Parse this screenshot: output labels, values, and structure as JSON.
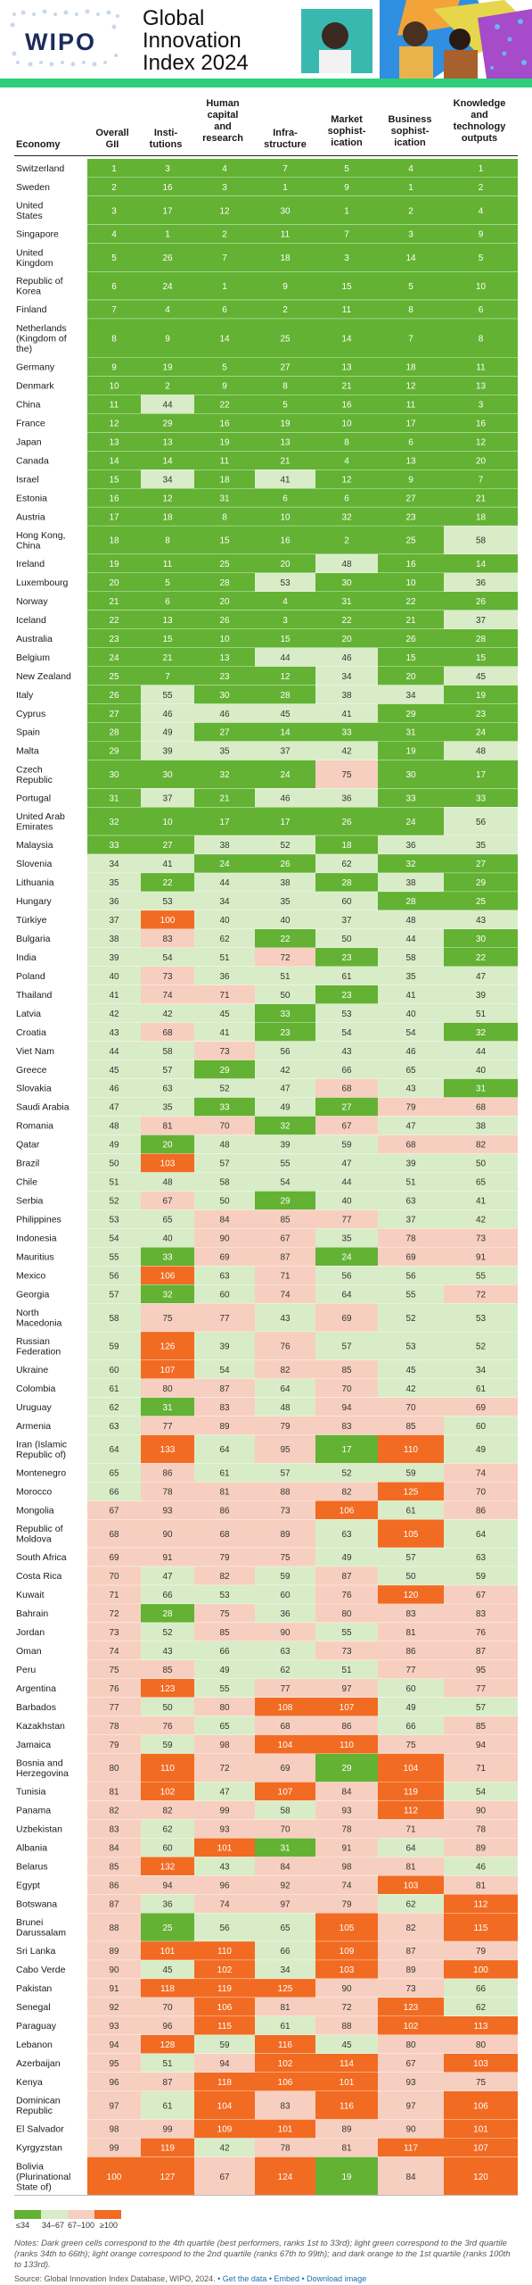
{
  "header": {
    "logo_text": "WIPO",
    "title": "Global\nInnovation\nIndex 2024",
    "colors": {
      "band": "#2ecf7a",
      "logo_text": "#1b2c5c"
    }
  },
  "table": {
    "columns": [
      "Economy",
      "Overall\nGII",
      "Insti-\ntutions",
      "Human\ncapital\nand\nresearch",
      "Infra-\nstructure",
      "Market\nsophist-\nication",
      "Business\nsophist-\nication",
      "Knowledge\nand\ntechnology\noutputs"
    ]
  },
  "chart_data": {
    "type": "table",
    "title": "",
    "columns": [
      "Economy",
      "Overall GII",
      "Institutions",
      "Human capital and research",
      "Infrastructure",
      "Market sophistication",
      "Business sophistication",
      "Knowledge and technology outputs"
    ],
    "color_scale": {
      "q1": "#63b233",
      "q2": "#d9ecc8",
      "q3": "#f7cfc0",
      "q4": "#f26b22"
    },
    "rows": [
      [
        "Switzerland",
        1,
        3,
        4,
        7,
        5,
        4,
        1
      ],
      [
        "Sweden",
        2,
        16,
        3,
        1,
        9,
        1,
        2
      ],
      [
        "United\nStates",
        3,
        17,
        12,
        30,
        1,
        2,
        4
      ],
      [
        "Singapore",
        4,
        1,
        2,
        11,
        7,
        3,
        9
      ],
      [
        "United\nKingdom",
        5,
        26,
        7,
        18,
        3,
        14,
        5
      ],
      [
        "Republic of\nKorea",
        6,
        24,
        1,
        9,
        15,
        5,
        10
      ],
      [
        "Finland",
        7,
        4,
        6,
        2,
        11,
        8,
        6
      ],
      [
        "Netherlands\n(Kingdom of\nthe)",
        8,
        9,
        14,
        25,
        14,
        7,
        8
      ],
      [
        "Germany",
        9,
        19,
        5,
        27,
        13,
        18,
        11
      ],
      [
        "Denmark",
        10,
        2,
        9,
        8,
        21,
        12,
        13
      ],
      [
        "China",
        11,
        44,
        22,
        5,
        16,
        11,
        3
      ],
      [
        "France",
        12,
        29,
        16,
        19,
        10,
        17,
        16
      ],
      [
        "Japan",
        13,
        13,
        19,
        13,
        8,
        6,
        12
      ],
      [
        "Canada",
        14,
        14,
        11,
        21,
        4,
        13,
        20
      ],
      [
        "Israel",
        15,
        34,
        18,
        41,
        12,
        9,
        7
      ],
      [
        "Estonia",
        16,
        12,
        31,
        6,
        6,
        27,
        21
      ],
      [
        "Austria",
        17,
        18,
        8,
        10,
        32,
        23,
        18
      ],
      [
        "Hong Kong,\nChina",
        18,
        8,
        15,
        16,
        2,
        25,
        58
      ],
      [
        "Ireland",
        19,
        11,
        25,
        20,
        48,
        16,
        14
      ],
      [
        "Luxembourg",
        20,
        5,
        28,
        53,
        30,
        10,
        36
      ],
      [
        "Norway",
        21,
        6,
        20,
        4,
        31,
        22,
        26
      ],
      [
        "Iceland",
        22,
        13,
        26,
        3,
        22,
        21,
        37
      ],
      [
        "Australia",
        23,
        15,
        10,
        15,
        20,
        26,
        28
      ],
      [
        "Belgium",
        24,
        21,
        13,
        44,
        46,
        15,
        15
      ],
      [
        "New Zealand",
        25,
        7,
        23,
        12,
        34,
        20,
        45
      ],
      [
        "Italy",
        26,
        55,
        30,
        28,
        38,
        34,
        19
      ],
      [
        "Cyprus",
        27,
        46,
        46,
        45,
        41,
        29,
        23
      ],
      [
        "Spain",
        28,
        49,
        27,
        14,
        33,
        31,
        24
      ],
      [
        "Malta",
        29,
        39,
        35,
        37,
        42,
        19,
        48
      ],
      [
        "Czech\nRepublic",
        30,
        30,
        32,
        24,
        75,
        30,
        17
      ],
      [
        "Portugal",
        31,
        37,
        21,
        46,
        36,
        33,
        33
      ],
      [
        "United Arab\nEmirates",
        32,
        10,
        17,
        17,
        26,
        24,
        56
      ],
      [
        "Malaysia",
        33,
        27,
        38,
        52,
        18,
        36,
        35
      ],
      [
        "Slovenia",
        34,
        41,
        24,
        26,
        62,
        32,
        27
      ],
      [
        "Lithuania",
        35,
        22,
        44,
        38,
        28,
        38,
        29
      ],
      [
        "Hungary",
        36,
        53,
        34,
        35,
        60,
        28,
        25
      ],
      [
        "Türkiye",
        37,
        100,
        40,
        40,
        37,
        48,
        43
      ],
      [
        "Bulgaria",
        38,
        83,
        62,
        22,
        50,
        44,
        30
      ],
      [
        "India",
        39,
        54,
        51,
        72,
        23,
        58,
        22
      ],
      [
        "Poland",
        40,
        73,
        36,
        51,
        61,
        35,
        47
      ],
      [
        "Thailand",
        41,
        74,
        71,
        50,
        23,
        41,
        39
      ],
      [
        "Latvia",
        42,
        42,
        45,
        33,
        53,
        40,
        51
      ],
      [
        "Croatia",
        43,
        68,
        41,
        23,
        54,
        54,
        32
      ],
      [
        "Viet Nam",
        44,
        58,
        73,
        56,
        43,
        46,
        44
      ],
      [
        "Greece",
        45,
        57,
        29,
        42,
        66,
        65,
        40
      ],
      [
        "Slovakia",
        46,
        63,
        52,
        47,
        68,
        43,
        31
      ],
      [
        "Saudi Arabia",
        47,
        35,
        33,
        49,
        27,
        79,
        68
      ],
      [
        "Romania",
        48,
        81,
        70,
        32,
        67,
        47,
        38
      ],
      [
        "Qatar",
        49,
        20,
        48,
        39,
        59,
        68,
        82
      ],
      [
        "Brazil",
        50,
        103,
        57,
        55,
        47,
        39,
        50
      ],
      [
        "Chile",
        51,
        48,
        58,
        54,
        44,
        51,
        65
      ],
      [
        "Serbia",
        52,
        67,
        50,
        29,
        40,
        63,
        41
      ],
      [
        "Philippines",
        53,
        65,
        84,
        85,
        77,
        37,
        42
      ],
      [
        "Indonesia",
        54,
        40,
        90,
        67,
        35,
        78,
        73
      ],
      [
        "Mauritius",
        55,
        33,
        69,
        87,
        24,
        69,
        91
      ],
      [
        "Mexico",
        56,
        106,
        63,
        71,
        56,
        56,
        55
      ],
      [
        "Georgia",
        57,
        32,
        60,
        74,
        64,
        55,
        72
      ],
      [
        "North\nMacedonia",
        58,
        75,
        77,
        43,
        69,
        52,
        53
      ],
      [
        "Russian\nFederation",
        59,
        126,
        39,
        76,
        57,
        53,
        52
      ],
      [
        "Ukraine",
        60,
        107,
        54,
        82,
        85,
        45,
        34
      ],
      [
        "Colombia",
        61,
        80,
        87,
        64,
        70,
        42,
        61
      ],
      [
        "Uruguay",
        62,
        31,
        83,
        48,
        94,
        70,
        69
      ],
      [
        "Armenia",
        63,
        77,
        89,
        79,
        83,
        85,
        60
      ],
      [
        "Iran (Islamic\nRepublic of)",
        64,
        133,
        64,
        95,
        17,
        110,
        49
      ],
      [
        "Montenegro",
        65,
        86,
        61,
        57,
        52,
        59,
        74
      ],
      [
        "Morocco",
        66,
        78,
        81,
        88,
        82,
        125,
        70
      ],
      [
        "Mongolia",
        67,
        93,
        86,
        73,
        106,
        61,
        86
      ],
      [
        "Republic of\nMoldova",
        68,
        90,
        68,
        89,
        63,
        105,
        64
      ],
      [
        "South Africa",
        69,
        91,
        79,
        75,
        49,
        57,
        63
      ],
      [
        "Costa Rica",
        70,
        47,
        82,
        59,
        87,
        50,
        59
      ],
      [
        "Kuwait",
        71,
        66,
        53,
        60,
        76,
        120,
        67
      ],
      [
        "Bahrain",
        72,
        28,
        75,
        36,
        80,
        83,
        83
      ],
      [
        "Jordan",
        73,
        52,
        85,
        90,
        55,
        81,
        76
      ],
      [
        "Oman",
        74,
        43,
        66,
        63,
        73,
        86,
        87
      ],
      [
        "Peru",
        75,
        85,
        49,
        62,
        51,
        77,
        95
      ],
      [
        "Argentina",
        76,
        123,
        55,
        77,
        97,
        60,
        77
      ],
      [
        "Barbados",
        77,
        50,
        80,
        108,
        107,
        49,
        57
      ],
      [
        "Kazakhstan",
        78,
        76,
        65,
        68,
        86,
        66,
        85
      ],
      [
        "Jamaica",
        79,
        59,
        98,
        104,
        110,
        75,
        94
      ],
      [
        "Bosnia and\nHerzegovina",
        80,
        110,
        72,
        69,
        29,
        104,
        71
      ],
      [
        "Tunisia",
        81,
        102,
        47,
        107,
        84,
        119,
        54
      ],
      [
        "Panama",
        82,
        82,
        99,
        58,
        93,
        112,
        90
      ],
      [
        "Uzbekistan",
        83,
        62,
        93,
        70,
        78,
        71,
        78
      ],
      [
        "Albania",
        84,
        60,
        101,
        31,
        91,
        64,
        89
      ],
      [
        "Belarus",
        85,
        132,
        43,
        84,
        98,
        81,
        46
      ],
      [
        "Egypt",
        86,
        94,
        96,
        92,
        74,
        103,
        81
      ],
      [
        "Botswana",
        87,
        36,
        74,
        97,
        79,
        62,
        112
      ],
      [
        "Brunei\nDarussalam",
        88,
        25,
        56,
        65,
        105,
        82,
        115
      ],
      [
        "Sri Lanka",
        89,
        101,
        110,
        66,
        109,
        87,
        79
      ],
      [
        "Cabo Verde",
        90,
        45,
        102,
        34,
        103,
        89,
        100
      ],
      [
        "Pakistan",
        91,
        118,
        119,
        125,
        90,
        73,
        66
      ],
      [
        "Senegal",
        92,
        70,
        106,
        81,
        72,
        123,
        62
      ],
      [
        "Paraguay",
        93,
        96,
        115,
        61,
        88,
        102,
        113
      ],
      [
        "Lebanon",
        94,
        128,
        59,
        116,
        45,
        80,
        80
      ],
      [
        "Azerbaijan",
        95,
        51,
        94,
        102,
        114,
        67,
        103
      ],
      [
        "Kenya",
        96,
        87,
        118,
        106,
        101,
        93,
        75
      ],
      [
        "Dominican\nRepublic",
        97,
        61,
        104,
        83,
        116,
        97,
        106
      ],
      [
        "El Salvador",
        98,
        99,
        109,
        101,
        89,
        90,
        101
      ],
      [
        "Kyrgyzstan",
        99,
        119,
        42,
        78,
        81,
        117,
        107
      ],
      [
        "Bolivia\n(Plurinational\nState of)",
        100,
        127,
        67,
        124,
        19,
        84,
        120
      ]
    ]
  },
  "legend": {
    "items": [
      {
        "label": "≤34",
        "color": "#63b233"
      },
      {
        "label": "34–67",
        "color": "#d9ecc8"
      },
      {
        "label": "67–100",
        "color": "#f7cfc0"
      },
      {
        "label": "≥100",
        "color": "#f26b22"
      }
    ]
  },
  "notes": {
    "text": "Notes: Dark green cells correspond to the 4th quartile (best performers, ranks 1st to 33rd); light green correspond to the 3rd quartile (ranks 34th to 66th); light orange correspond to the 2nd quartile (ranks 67th to 99th); and dark orange to the 1st quartile (ranks 100th to 133rd).",
    "source": "Source: Global Innovation Index Database, WIPO, 2024.",
    "links": "• Get the data • Embed • Download image"
  }
}
